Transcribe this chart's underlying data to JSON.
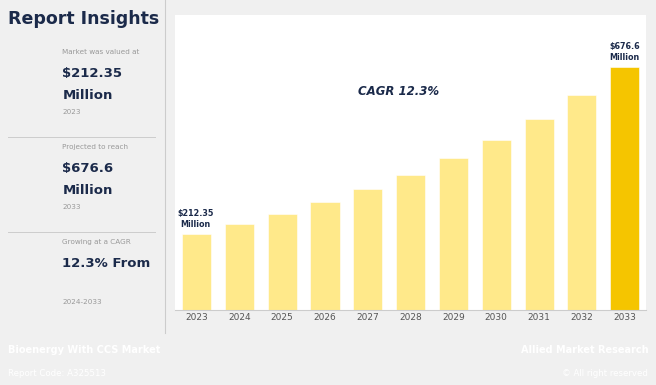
{
  "years": [
    2023,
    2024,
    2025,
    2026,
    2027,
    2028,
    2029,
    2030,
    2031,
    2032,
    2033
  ],
  "values": [
    212.35,
    238.0,
    267.0,
    300.0,
    336.0,
    377.0,
    423.0,
    474.0,
    532.0,
    597.0,
    676.6
  ],
  "bar_color_light": "#FFE98A",
  "bar_color_last": "#F5C500",
  "bg_color": "#F0F0F0",
  "chart_bg": "#FFFFFF",
  "navy": "#1B2A4A",
  "gray_text": "#999999",
  "cagr_text": "CAGR 12.3%",
  "footer_left_bold": "Bioenergy With CCS Market",
  "footer_left_normal": "Report Code: A325513",
  "footer_right_bold": "Allied Market Research",
  "footer_right_normal": "© All right reserved",
  "footer_bg": "#1B2A4A",
  "panel_title": "Report Insights",
  "stat1_label": "Market was valued at",
  "stat1_value_line1": "$212.35",
  "stat1_value_line2": "Million",
  "stat1_sub": "2023",
  "stat2_label": "Projected to reach",
  "stat2_value_line1": "$676.6",
  "stat2_value_line2": "Million",
  "stat2_sub": "2033",
  "stat3_label": "Growing at a CAGR",
  "stat3_value_line1": "12.3% From",
  "stat3_sub": "2024-2033",
  "annotation_2023_line1": "$212.35",
  "annotation_2023_line2": "Million",
  "annotation_2033_line1": "$676.6",
  "annotation_2033_line2": "Million",
  "ylim_max": 820
}
